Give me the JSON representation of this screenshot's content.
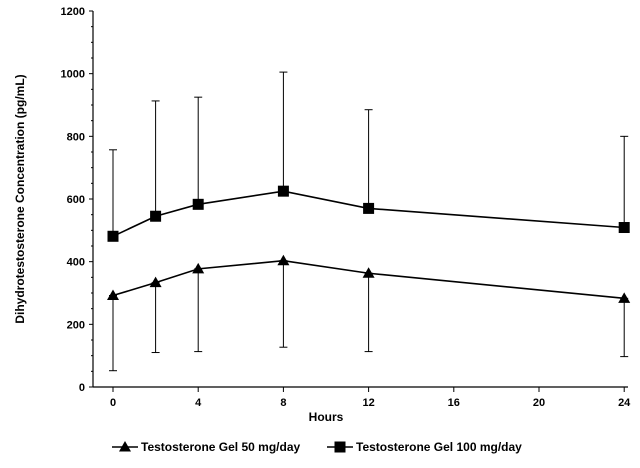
{
  "chart_data": {
    "type": "line",
    "xlabel": "Hours",
    "ylabel": "Dihydrotestosterone Concentration (pg/mL)",
    "ylim": [
      0,
      1200
    ],
    "yticks": [
      0,
      200,
      400,
      600,
      800,
      1000,
      1200
    ],
    "xtick_labels": [
      "0",
      "4",
      "8",
      "12",
      "16",
      "20",
      "24"
    ],
    "x": [
      0,
      2,
      4,
      8,
      12,
      24
    ],
    "grid": false,
    "legend_position": "bottom",
    "series": [
      {
        "name": "Testosterone Gel 50 mg/day",
        "marker": "triangle",
        "values": [
          292,
          333,
          377,
          403,
          363,
          283
        ],
        "error_upper": [
          292,
          333,
          377,
          403,
          363,
          283
        ],
        "error_lower": [
          52,
          110,
          113,
          127,
          113,
          97
        ]
      },
      {
        "name": "Testosterone Gel 100 mg/day",
        "marker": "square",
        "values": [
          481,
          545,
          583,
          625,
          570,
          509
        ],
        "error_upper": [
          757,
          913,
          925,
          1005,
          885,
          800
        ],
        "error_lower": [
          481,
          545,
          583,
          625,
          570,
          509
        ]
      }
    ]
  }
}
